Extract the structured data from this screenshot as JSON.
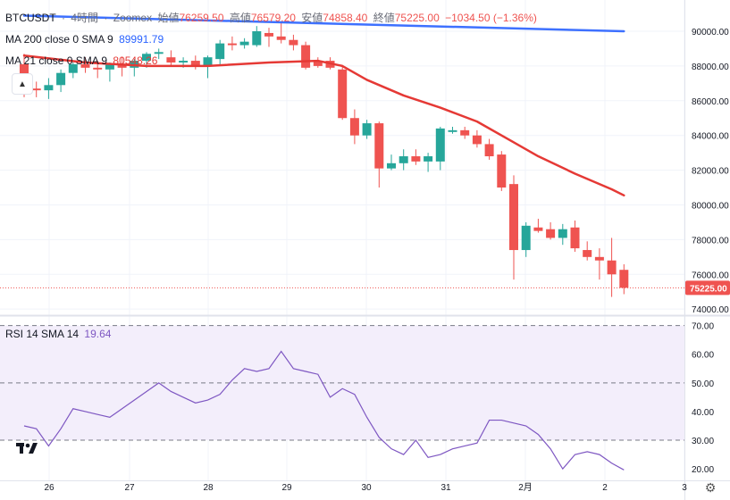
{
  "header": {
    "symbol": "BTCUSDT",
    "sep": "·",
    "interval": "4時間",
    "exchange": "Zoomex",
    "open_label": "始値",
    "open_value": "76259.50",
    "high_label": "高値",
    "high_value": "76579.20",
    "low_label": "安値",
    "low_value": "74858.40",
    "close_label": "終値",
    "close_value": "75225.00",
    "change": "−1034.50 (−1.36%)"
  },
  "ma200": {
    "label": "MA 200 close 0 SMA 9",
    "value": "89991.79"
  },
  "ma21": {
    "label": "MA 21 close 0 SMA 9",
    "value": "80548.26"
  },
  "rsi": {
    "label": "RSI 14 SMA 14",
    "value": "19.64"
  },
  "current_price_label": "75225.00",
  "colors": {
    "up": "#26a69a",
    "down": "#ef5350",
    "ma200": "#2962ff",
    "ma21": "#e53935",
    "rsi": "#7e57c2",
    "rsi_band": "#f3eefb"
  },
  "icons": {
    "collapse": "chevron-up-icon",
    "logo": "tradingview-logo",
    "settings": "gear-icon"
  },
  "chart_data": [
    {
      "type": "candlestick",
      "title": "BTCUSDT · 4時間 · Zoomex",
      "x_ticks": [
        "26",
        "27",
        "28",
        "29",
        "30",
        "31",
        "2月",
        "2",
        "3"
      ],
      "y_ticks": [
        74000,
        76000,
        78000,
        80000,
        82000,
        84000,
        86000,
        88000,
        90000
      ],
      "ylim": [
        73700,
        91800
      ],
      "grid": true,
      "candles": [
        {
          "o": 88100,
          "h": 88700,
          "l": 86200,
          "c": 86700
        },
        {
          "o": 86700,
          "h": 87100,
          "l": 86200,
          "c": 86600
        },
        {
          "o": 86600,
          "h": 87300,
          "l": 86100,
          "c": 86900
        },
        {
          "o": 86900,
          "h": 87800,
          "l": 86500,
          "c": 87600
        },
        {
          "o": 87600,
          "h": 88200,
          "l": 87300,
          "c": 88100
        },
        {
          "o": 88100,
          "h": 88500,
          "l": 87600,
          "c": 87900
        },
        {
          "o": 87900,
          "h": 88300,
          "l": 87300,
          "c": 87800
        },
        {
          "o": 87800,
          "h": 88200,
          "l": 87100,
          "c": 88100
        },
        {
          "o": 88100,
          "h": 88500,
          "l": 87400,
          "c": 87900
        },
        {
          "o": 87900,
          "h": 88400,
          "l": 87400,
          "c": 88300
        },
        {
          "o": 88300,
          "h": 88800,
          "l": 87900,
          "c": 88700
        },
        {
          "o": 88700,
          "h": 89000,
          "l": 88400,
          "c": 88800
        },
        {
          "o": 88500,
          "h": 88900,
          "l": 88000,
          "c": 88200
        },
        {
          "o": 88200,
          "h": 88500,
          "l": 87900,
          "c": 88300
        },
        {
          "o": 88300,
          "h": 88600,
          "l": 87800,
          "c": 88000
        },
        {
          "o": 88000,
          "h": 88600,
          "l": 87300,
          "c": 88500
        },
        {
          "o": 88400,
          "h": 89500,
          "l": 88100,
          "c": 89300
        },
        {
          "o": 89300,
          "h": 89700,
          "l": 88900,
          "c": 89200
        },
        {
          "o": 89200,
          "h": 89600,
          "l": 89000,
          "c": 89400
        },
        {
          "o": 89200,
          "h": 90300,
          "l": 89100,
          "c": 90000
        },
        {
          "o": 89900,
          "h": 90200,
          "l": 89100,
          "c": 89700
        },
        {
          "o": 89700,
          "h": 90500,
          "l": 89300,
          "c": 89500
        },
        {
          "o": 89500,
          "h": 89800,
          "l": 88900,
          "c": 89200
        },
        {
          "o": 89200,
          "h": 89400,
          "l": 87800,
          "c": 87900
        },
        {
          "o": 88300,
          "h": 88500,
          "l": 87900,
          "c": 88000
        },
        {
          "o": 88300,
          "h": 88500,
          "l": 87800,
          "c": 87900
        },
        {
          "o": 87800,
          "h": 88000,
          "l": 84900,
          "c": 85000
        },
        {
          "o": 85000,
          "h": 85500,
          "l": 83500,
          "c": 84000
        },
        {
          "o": 84000,
          "h": 84900,
          "l": 83800,
          "c": 84700
        },
        {
          "o": 84700,
          "h": 84800,
          "l": 81000,
          "c": 82100
        },
        {
          "o": 82100,
          "h": 82900,
          "l": 82000,
          "c": 82400
        },
        {
          "o": 82400,
          "h": 83200,
          "l": 82000,
          "c": 82800
        },
        {
          "o": 82800,
          "h": 83200,
          "l": 82300,
          "c": 82500
        },
        {
          "o": 82500,
          "h": 83000,
          "l": 81900,
          "c": 82800
        },
        {
          "o": 82500,
          "h": 84500,
          "l": 82000,
          "c": 84400
        },
        {
          "o": 84200,
          "h": 84500,
          "l": 84100,
          "c": 84300
        },
        {
          "o": 84300,
          "h": 84500,
          "l": 83800,
          "c": 84000
        },
        {
          "o": 84000,
          "h": 84300,
          "l": 83300,
          "c": 83500
        },
        {
          "o": 83500,
          "h": 83800,
          "l": 82600,
          "c": 82800
        },
        {
          "o": 82900,
          "h": 83100,
          "l": 80800,
          "c": 81000
        },
        {
          "o": 81200,
          "h": 81700,
          "l": 75700,
          "c": 77400
        },
        {
          "o": 77400,
          "h": 79000,
          "l": 77000,
          "c": 78800
        },
        {
          "o": 78700,
          "h": 79200,
          "l": 78400,
          "c": 78500
        },
        {
          "o": 78600,
          "h": 79000,
          "l": 78000,
          "c": 78100
        },
        {
          "o": 78100,
          "h": 78900,
          "l": 77700,
          "c": 78600
        },
        {
          "o": 78700,
          "h": 79100,
          "l": 77300,
          "c": 77500
        },
        {
          "o": 77400,
          "h": 77900,
          "l": 76800,
          "c": 77000
        },
        {
          "o": 77000,
          "h": 77500,
          "l": 75700,
          "c": 76800
        },
        {
          "o": 76800,
          "h": 78100,
          "l": 74700,
          "c": 76000
        },
        {
          "o": 76259.5,
          "h": 76579.2,
          "l": 74858.4,
          "c": 75225.0
        }
      ],
      "series": [
        {
          "name": "MA 200",
          "x": [
            0,
            49
          ],
          "values": [
            90900,
            90000
          ]
        },
        {
          "name": "MA 21",
          "x": [
            0,
            5,
            10,
            15,
            20,
            24,
            26,
            28,
            31,
            34,
            37,
            40,
            42,
            45,
            48,
            49
          ],
          "values": [
            88600,
            88200,
            88000,
            88000,
            88200,
            88300,
            88000,
            87200,
            86300,
            85600,
            84800,
            83600,
            82800,
            81800,
            80900,
            80548.26
          ]
        }
      ]
    },
    {
      "type": "line",
      "title": "RSI 14 SMA 14",
      "y_ticks": [
        20,
        30,
        40,
        50,
        60,
        70
      ],
      "ylim": [
        16,
        73
      ],
      "band": [
        30,
        70
      ],
      "midline": 50,
      "series": [
        {
          "name": "RSI",
          "x": [
            0,
            1,
            2,
            3,
            4,
            5,
            6,
            7,
            8,
            9,
            10,
            11,
            12,
            13,
            14,
            15,
            16,
            17,
            18,
            19,
            20,
            21,
            22,
            23,
            24,
            25,
            26,
            27,
            28,
            29,
            30,
            31,
            32,
            33,
            34,
            35,
            36,
            37,
            38,
            39,
            40,
            41,
            42,
            43,
            44,
            45,
            46,
            47,
            48,
            49
          ],
          "values": [
            35,
            34,
            28,
            34,
            41,
            40,
            39,
            38,
            41,
            44,
            47,
            50,
            47,
            45,
            43,
            44,
            46,
            51,
            55,
            54,
            55,
            61,
            55,
            54,
            53,
            45,
            48,
            46,
            38,
            31,
            27,
            25,
            30,
            24,
            25,
            27,
            28,
            29,
            37,
            37,
            36,
            35,
            32,
            27,
            20,
            25,
            26,
            25,
            22,
            19.64
          ]
        }
      ]
    }
  ]
}
